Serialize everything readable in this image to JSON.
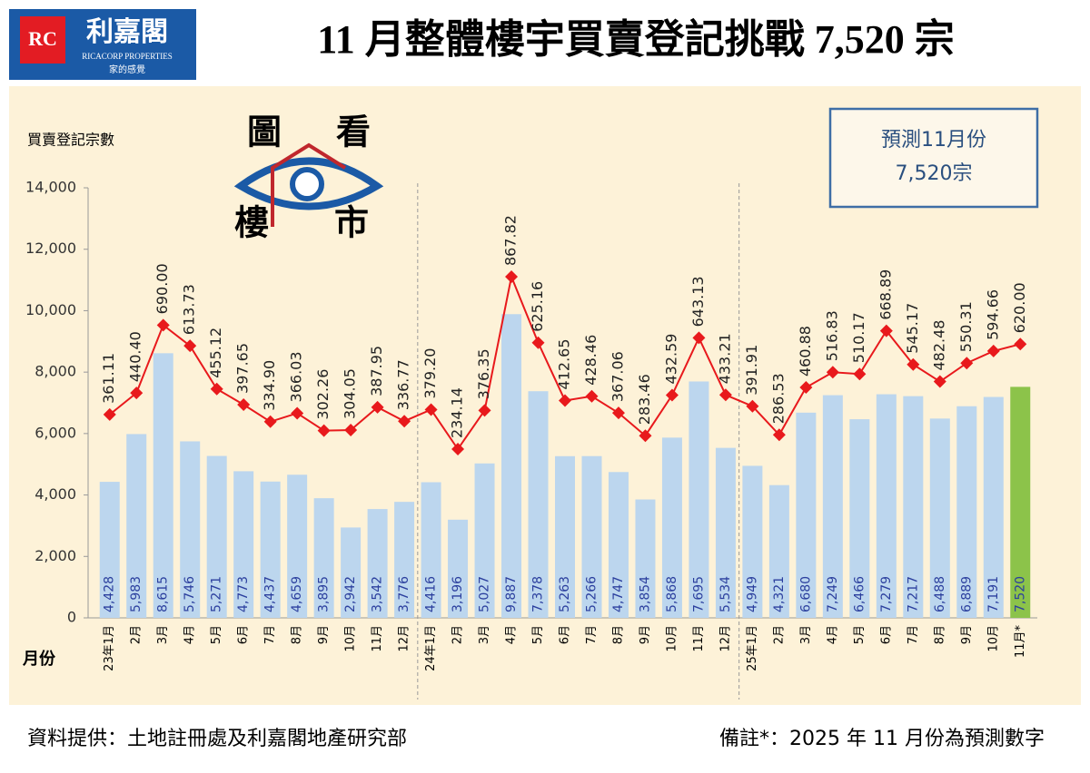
{
  "header": {
    "logo_name": "利嘉閣",
    "logo_english": "RICACORP PROPERTIES",
    "logo_slogan": "家的感覺",
    "title": "11 月整體樓宇買賣登記挑戰 7,520 宗"
  },
  "chart_data": {
    "type": "bar",
    "y_label": "買賣登記宗數",
    "x_label": "月份",
    "stamp": [
      "圖",
      "看",
      "樓",
      "市"
    ],
    "callout": [
      "預測11月份",
      "7,520宗"
    ],
    "categories": [
      "23年1月",
      "2月",
      "3月",
      "4月",
      "5月",
      "6月",
      "7月",
      "8月",
      "9月",
      "10月",
      "11月",
      "12月",
      "24年1月",
      "2月",
      "3月",
      "4月",
      "5月",
      "6月",
      "7月",
      "8月",
      "9月",
      "10月",
      "11月",
      "12月",
      "25年1月",
      "2月",
      "3月",
      "4月",
      "5月",
      "6月",
      "7月",
      "8月",
      "9月",
      "10月",
      "11月*"
    ],
    "ylim": [
      0,
      14000
    ],
    "yticks": [
      0,
      {
        "value": 2000,
        "label": "2,000"
      },
      {
        "value": 4000,
        "label": "4,000"
      },
      {
        "value": 6000,
        "label": "6,000"
      },
      {
        "value": 8000,
        "label": "8,000"
      },
      {
        "value": 10000,
        "label": "10,000"
      },
      {
        "value": 12000,
        "label": "12,000"
      },
      {
        "value": 14000,
        "label": "14,000"
      }
    ],
    "series": [
      {
        "type": "bar",
        "color": "#bcd6ee",
        "label_color": "#2b3f9e",
        "colors": [
          "#bcd6ee",
          "#bcd6ee",
          "#bcd6ee",
          "#bcd6ee",
          "#bcd6ee",
          "#bcd6ee",
          "#bcd6ee",
          "#bcd6ee",
          "#bcd6ee",
          "#bcd6ee",
          "#bcd6ee",
          "#bcd6ee",
          "#bcd6ee",
          "#bcd6ee",
          "#bcd6ee",
          "#bcd6ee",
          "#bcd6ee",
          "#bcd6ee",
          "#bcd6ee",
          "#bcd6ee",
          "#bcd6ee",
          "#bcd6ee",
          "#bcd6ee",
          "#bcd6ee",
          "#bcd6ee",
          "#bcd6ee",
          "#bcd6ee",
          "#bcd6ee",
          "#bcd6ee",
          "#bcd6ee",
          "#bcd6ee",
          "#bcd6ee",
          "#bcd6ee",
          "#bcd6ee",
          "#8cc34a"
        ],
        "values": [
          4428,
          5983,
          8615,
          5746,
          5271,
          4773,
          4437,
          4659,
          3895,
          2942,
          3542,
          3776,
          4416,
          3196,
          5027,
          9887,
          7378,
          5263,
          5266,
          4747,
          3854,
          5868,
          7695,
          5534,
          4949,
          4321,
          6680,
          7249,
          6466,
          7279,
          7217,
          6488,
          6889,
          7191,
          7520
        ],
        "value_labels": [
          "4,428",
          "5,983",
          "8,615",
          "5,746",
          "5,271",
          "4,773",
          "4,437",
          "4,659",
          "3,895",
          "2,942",
          "3,542",
          "3,776",
          "4,416",
          "3,196",
          "5,027",
          "9,887",
          "7,378",
          "5,263",
          "5,266",
          "4,747",
          "3,854",
          "5,868",
          "7,695",
          "5,534",
          "4,949",
          "4,321",
          "6,680",
          "7,249",
          "6,466",
          "7,279",
          "7,217",
          "6,488",
          "6,889",
          "7,191",
          "7,520"
        ]
      },
      {
        "type": "line",
        "color": "#e8191c",
        "values": [
          361.11,
          440.4,
          690,
          613.73,
          455.12,
          397.65,
          334.9,
          366.03,
          302.26,
          304.05,
          387.95,
          336.77,
          379.2,
          234.14,
          376.35,
          867.82,
          625.16,
          412.65,
          428.46,
          367.06,
          283.46,
          432.59,
          643.13,
          433.21,
          391.91,
          286.53,
          460.88,
          516.83,
          510.17,
          668.89,
          545.17,
          482.48,
          550.31,
          594.66,
          620
        ],
        "value_labels": [
          "361.11",
          "440.40",
          "690.00",
          "613.73",
          "455.12",
          "397.65",
          "334.90",
          "366.03",
          "302.26",
          "304.05",
          "387.95",
          "336.77",
          "379.20",
          "234.14",
          "376.35",
          "867.82",
          "625.16",
          "412.65",
          "428.46",
          "367.06",
          "283.46",
          "432.59",
          "643.13",
          "433.21",
          "391.91",
          "286.53",
          "460.88",
          "516.83",
          "510.17",
          "668.89",
          "545.17",
          "482.48",
          "550.31",
          "594.66",
          "620.00"
        ]
      }
    ]
  },
  "footer": {
    "source": "資料提供：土地註冊處及利嘉閣地產研究部",
    "note": "備註*：2025 年 11 月份為預測數字"
  }
}
